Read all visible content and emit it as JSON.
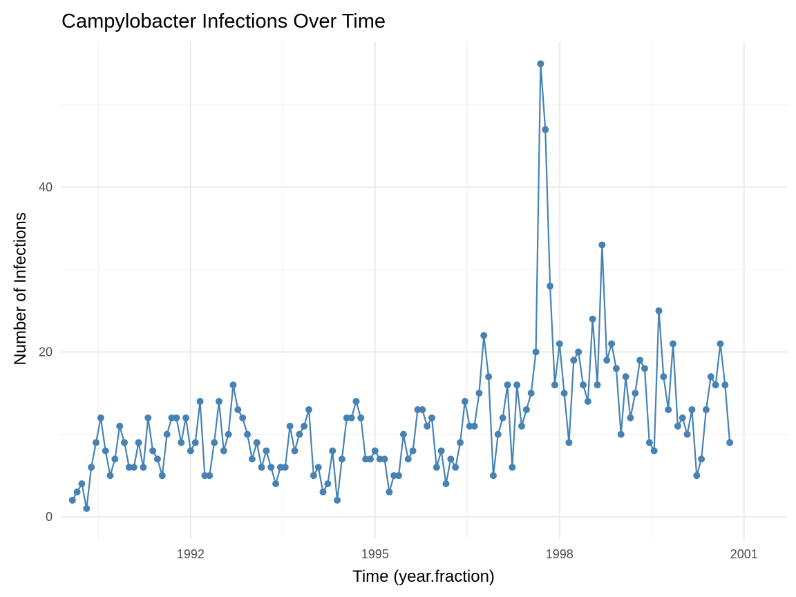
{
  "chart_data": {
    "type": "line",
    "title": "Campylobacter Infections Over Time",
    "xlabel": "Time (year.fraction)",
    "ylabel": "Number of Infections",
    "x_start": 1990.077,
    "x_step": 0.0769231,
    "values": [
      2,
      3,
      4,
      1,
      6,
      9,
      12,
      8,
      5,
      7,
      11,
      9,
      6,
      6,
      9,
      6,
      12,
      8,
      7,
      5,
      10,
      12,
      12,
      9,
      12,
      8,
      9,
      14,
      5,
      5,
      9,
      14,
      8,
      10,
      16,
      13,
      12,
      10,
      7,
      9,
      6,
      8,
      6,
      4,
      6,
      6,
      11,
      8,
      10,
      11,
      13,
      5,
      6,
      3,
      4,
      8,
      2,
      7,
      12,
      12,
      14,
      12,
      7,
      7,
      8,
      7,
      7,
      3,
      5,
      5,
      10,
      7,
      8,
      13,
      13,
      11,
      12,
      6,
      8,
      4,
      7,
      6,
      9,
      14,
      11,
      11,
      15,
      22,
      17,
      5,
      10,
      12,
      16,
      6,
      16,
      11,
      13,
      15,
      20,
      55,
      47,
      28,
      16,
      21,
      15,
      9,
      19,
      20,
      16,
      14,
      24,
      16,
      33,
      19,
      21,
      18,
      10,
      17,
      12,
      15,
      19,
      18,
      9,
      8,
      25,
      17,
      13,
      21,
      11,
      12,
      10,
      13,
      5,
      7,
      13,
      17,
      16,
      21,
      16,
      9
    ],
    "x_ticks": [
      1992,
      1995,
      1998,
      2001
    ],
    "x_tick_labels": [
      "1992",
      "1995",
      "1998",
      "2001"
    ],
    "y_ticks": [
      0,
      20,
      40
    ],
    "y_tick_labels": [
      "0",
      "20",
      "40"
    ],
    "xlim": [
      1989.9,
      2001.7
    ],
    "ylim": [
      -2.7,
      57.7
    ],
    "grid": true,
    "colors": {
      "line": "#4682B4",
      "point": "#4682B4"
    }
  }
}
